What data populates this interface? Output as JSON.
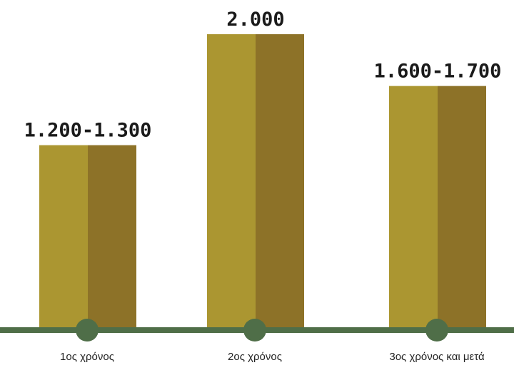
{
  "chart_data": {
    "type": "bar",
    "categories": [
      "1ος χρόνος",
      "2ος χρόνος",
      "3ος χρόνος και μετά"
    ],
    "values": [
      1250,
      2000,
      1650
    ],
    "ranges": [
      [
        1200,
        1300
      ],
      [
        2000,
        2000
      ],
      [
        1600,
        1700
      ]
    ],
    "value_labels": [
      "1.200-1.300",
      "2.000",
      "1.600-1.700"
    ],
    "title": "",
    "xlabel": "",
    "ylabel": "",
    "ylim": [
      0,
      2000
    ],
    "grid": false,
    "legend": "none"
  },
  "colors": {
    "bar_light": "#AB9631",
    "bar_dark": "#8D7228",
    "baseline": "#4F6E48",
    "marker": "#4F6E48",
    "text": "#1a1a1a"
  }
}
